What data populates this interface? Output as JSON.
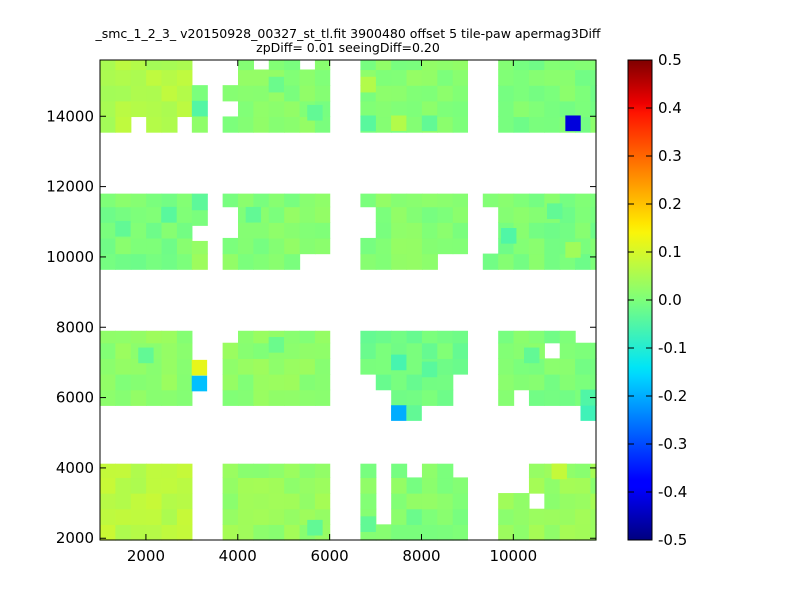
{
  "chart_data": {
    "type": "heatmap",
    "title_line1": "_smc_1_2_3_ v20150928_00327_st_tl.fit 3900480 offset 5 tile-paw apermag3Diff",
    "title_line2": "zpDiff= 0.01 seeingDiff=0.20",
    "xlabel": "",
    "ylabel": "",
    "xlim": [
      1000,
      11800
    ],
    "ylim": [
      1950,
      15600
    ],
    "x_ticks": [
      2000,
      4000,
      6000,
      8000,
      10000
    ],
    "y_ticks": [
      2000,
      4000,
      6000,
      8000,
      10000,
      12000,
      14000
    ],
    "colorbar": {
      "vmin": -0.5,
      "vmax": 0.5,
      "colormap": "jet",
      "ticks": [
        "0.5",
        "0.4",
        "0.3",
        "0.2",
        "0.1",
        "0.0",
        "-0.1",
        "-0.2",
        "-0.3",
        "-0.4",
        "-0.5"
      ]
    },
    "grid": false,
    "cell_size": [
      335,
      445
    ],
    "default_value": 0.0,
    "blocks": [
      {
        "x0": 1000,
        "x1": 3000,
        "y0": 13550,
        "y1": 15600,
        "value": 0.06,
        "holes": [
          [
            1650,
            1985,
            13550,
            13995
          ],
          [
            2655,
            2990,
            13550,
            13995
          ]
        ]
      },
      {
        "x0": 3000,
        "x1": 3335,
        "y0": 14440,
        "y1": 14885,
        "value": 0.01
      },
      {
        "x0": 3000,
        "x1": 3335,
        "y0": 13995,
        "y1": 14440,
        "value": -0.03
      },
      {
        "x0": 3000,
        "x1": 3335,
        "y0": 13550,
        "y1": 13995,
        "value": 0.02
      },
      {
        "x0": 3670,
        "x1": 6000,
        "y0": 13550,
        "y1": 15600,
        "value": 0.01,
        "holes": [
          [
            3670,
            4005,
            13995,
            14440
          ],
          [
            3670,
            4005,
            14885,
            15600
          ],
          [
            4340,
            4675,
            15330,
            15600
          ],
          [
            5345,
            5680,
            15330,
            15600
          ]
        ]
      },
      {
        "x0": 6670,
        "x1": 9000,
        "y0": 13550,
        "y1": 15600,
        "value": 0.01
      },
      {
        "x0": 9670,
        "x1": 11800,
        "y0": 13550,
        "y1": 15600,
        "value": 0.0
      },
      {
        "x0": 1000,
        "x1": 3000,
        "y0": 9650,
        "y1": 11800,
        "value": 0.0
      },
      {
        "x0": 3000,
        "x1": 3335,
        "y0": 10900,
        "y1": 11800,
        "value": -0.02
      },
      {
        "x0": 3000,
        "x1": 3335,
        "y0": 9650,
        "y1": 10455,
        "value": 0.03
      },
      {
        "x0": 3670,
        "x1": 6000,
        "y0": 9650,
        "y1": 11800,
        "value": 0.01,
        "holes": [
          [
            3670,
            4005,
            10455,
            11340
          ],
          [
            5345,
            6000,
            9650,
            10100
          ]
        ]
      },
      {
        "x0": 6670,
        "x1": 9000,
        "y0": 9650,
        "y1": 11800,
        "value": 0.01,
        "holes": [
          [
            6670,
            7005,
            10455,
            11340
          ],
          [
            8340,
            9000,
            9650,
            10100
          ]
        ]
      },
      {
        "x0": 9335,
        "x1": 11800,
        "y0": 9650,
        "y1": 11800,
        "value": 0.0,
        "holes": [
          [
            9335,
            9670,
            10100,
            11340
          ]
        ]
      },
      {
        "x0": 1000,
        "x1": 3000,
        "y0": 5780,
        "y1": 7900,
        "value": 0.02
      },
      {
        "x0": 3670,
        "x1": 6000,
        "y0": 5780,
        "y1": 7900,
        "value": 0.02,
        "holes": [
          [
            3670,
            4005,
            7450,
            7900
          ]
        ]
      },
      {
        "x0": 6670,
        "x1": 9000,
        "y0": 5780,
        "y1": 7900,
        "value": -0.01,
        "holes": [
          [
            6670,
            7005,
            5780,
            6670
          ],
          [
            8675,
            9000,
            5780,
            6670
          ],
          [
            7005,
            7340,
            5780,
            6225
          ]
        ]
      },
      {
        "x0": 9670,
        "x1": 11800,
        "y0": 5780,
        "y1": 7900,
        "value": 0.0,
        "holes": [
          [
            10005,
            10340,
            5780,
            6225
          ],
          [
            11340,
            11800,
            7450,
            7900
          ],
          [
            10675,
            11010,
            7005,
            7450
          ]
        ]
      },
      {
        "x0": 1000,
        "x1": 3000,
        "y0": 1950,
        "y1": 4120,
        "value": 0.07
      },
      {
        "x0": 3670,
        "x1": 6000,
        "y0": 1950,
        "y1": 4120,
        "value": 0.03
      },
      {
        "x0": 6670,
        "x1": 9000,
        "y0": 1950,
        "y1": 4120,
        "value": 0.01,
        "holes": [
          [
            7005,
            7340,
            2595,
            4120
          ],
          [
            7675,
            8010,
            3670,
            4120
          ],
          [
            8675,
            9000,
            3670,
            4120
          ]
        ]
      },
      {
        "x0": 9670,
        "x1": 11800,
        "y0": 1950,
        "y1": 4120,
        "value": 0.03,
        "holes": [
          [
            9670,
            10340,
            3225,
            4120
          ],
          [
            10340,
            10675,
            2780,
            3225
          ]
        ]
      }
    ],
    "cells": [
      {
        "x": 11300,
        "y": 13800,
        "value": -0.42
      },
      {
        "x": 3165,
        "y": 6850,
        "value": 0.12
      },
      {
        "x": 3165,
        "y": 6400,
        "value": -0.18
      },
      {
        "x": 7505,
        "y": 5560,
        "value": -0.2
      },
      {
        "x": 7840,
        "y": 5560,
        "value": -0.03
      },
      {
        "x": 11630,
        "y": 5560,
        "value": -0.07
      },
      {
        "x": 11630,
        "y": 6005,
        "value": -0.05
      },
      {
        "x": 7505,
        "y": 7000,
        "value": -0.06
      },
      {
        "x": 8175,
        "y": 6800,
        "value": -0.04
      },
      {
        "x": 1500,
        "y": 10800,
        "value": -0.03
      },
      {
        "x": 2500,
        "y": 11200,
        "value": -0.04
      },
      {
        "x": 4340,
        "y": 11200,
        "value": -0.03
      },
      {
        "x": 9900,
        "y": 10600,
        "value": -0.05
      },
      {
        "x": 10900,
        "y": 11300,
        "value": -0.03
      },
      {
        "x": 11300,
        "y": 10200,
        "value": 0.04
      },
      {
        "x": 7505,
        "y": 13800,
        "value": 0.06
      },
      {
        "x": 6840,
        "y": 14900,
        "value": 0.06
      },
      {
        "x": 8175,
        "y": 13800,
        "value": -0.03
      },
      {
        "x": 4840,
        "y": 14900,
        "value": -0.02
      },
      {
        "x": 5680,
        "y": 14100,
        "value": -0.03
      },
      {
        "x": 6840,
        "y": 13800,
        "value": -0.04
      },
      {
        "x": 6840,
        "y": 2400,
        "value": -0.03
      },
      {
        "x": 7840,
        "y": 2600,
        "value": -0.02
      },
      {
        "x": 5680,
        "y": 2300,
        "value": -0.03
      },
      {
        "x": 11000,
        "y": 3900,
        "value": 0.08
      },
      {
        "x": 2000,
        "y": 7200,
        "value": -0.03
      },
      {
        "x": 4840,
        "y": 7500,
        "value": -0.02
      },
      {
        "x": 10400,
        "y": 7200,
        "value": -0.03
      }
    ]
  }
}
